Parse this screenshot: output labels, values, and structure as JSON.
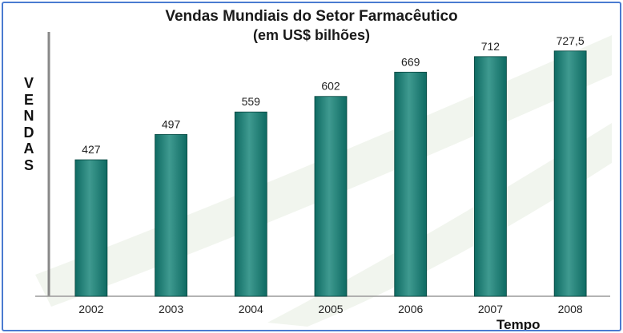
{
  "chart_data": {
    "type": "bar",
    "title": "Vendas Mundiais do Setor Farmacêutico",
    "subtitle": "(em US$ bilhões)",
    "ylabel": "VENDAS",
    "xlabel": "Tempo",
    "categories": [
      "2002",
      "2003",
      "2004",
      "2005",
      "2006",
      "2007",
      "2008"
    ],
    "values": [
      427,
      497,
      559,
      602,
      669,
      712,
      727.5
    ],
    "value_labels": [
      "427",
      "497",
      "559",
      "602",
      "669",
      "712",
      "727,5"
    ],
    "ylim": [
      50,
      780
    ],
    "grid": false,
    "legend": "none",
    "bar_color": "#0e6a62",
    "bar_highlight": "#3f9a90"
  }
}
